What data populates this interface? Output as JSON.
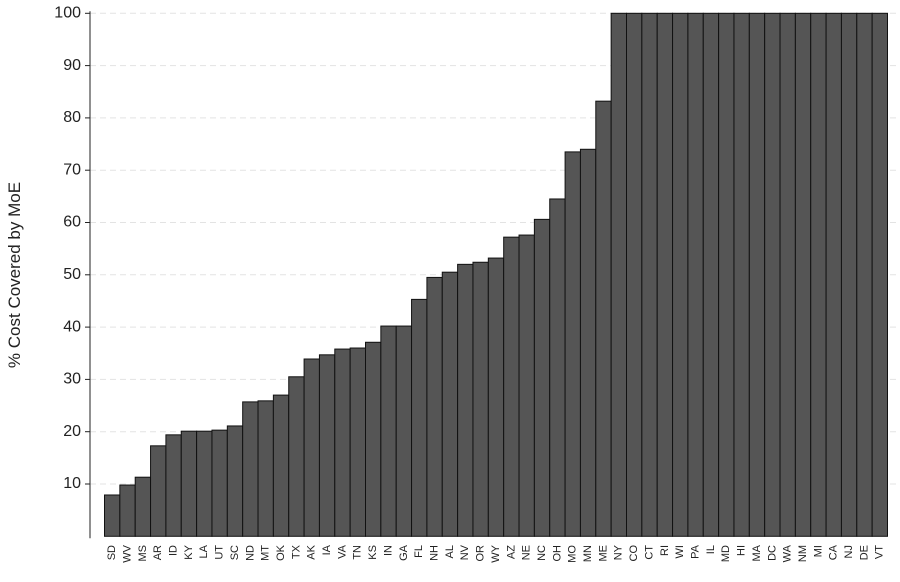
{
  "chart_data": {
    "type": "bar",
    "y_label": "% Cost Covered by MoE",
    "categories": [
      "SD",
      "WV",
      "MS",
      "AR",
      "ID",
      "KY",
      "LA",
      "UT",
      "SC",
      "ND",
      "MT",
      "OK",
      "TX",
      "AK",
      "IA",
      "VA",
      "TN",
      "KS",
      "IN",
      "GA",
      "FL",
      "NH",
      "AL",
      "NV",
      "OR",
      "WY",
      "AZ",
      "NE",
      "NC",
      "OH",
      "MO",
      "MN",
      "ME",
      "NY",
      "CO",
      "CT",
      "RI",
      "WI",
      "PA",
      "IL",
      "MD",
      "HI",
      "MA",
      "DC",
      "WA",
      "NM",
      "MI",
      "CA",
      "NJ",
      "DE",
      "VT"
    ],
    "values": [
      7.9,
      9.8,
      11.3,
      17.3,
      19.4,
      20.1,
      20.1,
      20.3,
      21.1,
      25.7,
      25.9,
      27.0,
      30.5,
      33.9,
      34.7,
      35.8,
      36.0,
      37.1,
      40.2,
      40.2,
      45.3,
      49.5,
      50.5,
      52.0,
      52.4,
      53.2,
      57.2,
      57.6,
      60.6,
      64.5,
      73.5,
      74.0,
      83.2,
      100,
      100,
      100,
      100,
      100,
      100,
      100,
      100,
      100,
      100,
      100,
      100,
      100,
      100,
      100,
      100,
      100,
      100
    ],
    "color": "#555555",
    "ylim": [
      0,
      100
    ],
    "yticks": [
      10,
      20,
      30,
      40,
      50,
      60,
      70,
      80,
      90,
      100
    ],
    "grid": true
  }
}
